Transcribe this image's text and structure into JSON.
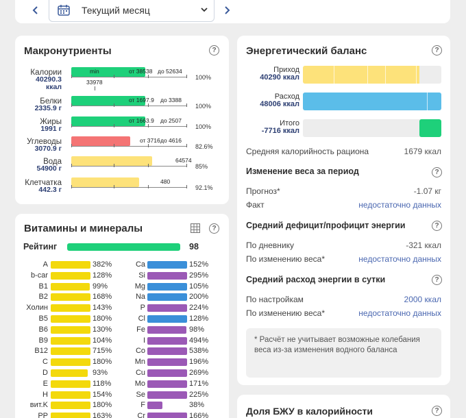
{
  "header": {
    "period_label": "Текущий месяц",
    "prev_icon": "chevron-left-icon",
    "next_icon": "chevron-right-icon"
  },
  "macros": {
    "title": "Макронутриенты",
    "items": [
      {
        "name": "Калории",
        "value1": "40290.3",
        "value2": "ккал",
        "fill_fraction": 0.64,
        "color": "#1ed07a",
        "labels": [
          "min",
          "от 38538",
          "до 52634"
        ],
        "sub_label": "33978",
        "pct": "100%"
      },
      {
        "name": "Белки",
        "value1": "2335.9 г",
        "fill_fraction": 0.64,
        "color": "#1ed07a",
        "labels": [
          "от 1697.9",
          "до 3388"
        ],
        "pct": "100%"
      },
      {
        "name": "Жиры",
        "value1": "1991 г",
        "fill_fraction": 0.64,
        "color": "#1ed07a",
        "labels": [
          "от 1663.9",
          "до 2507"
        ],
        "pct": "100%"
      },
      {
        "name": "Углеводы",
        "value1": "3070.9 г",
        "fill_fraction": 0.51,
        "color": "#f47474",
        "labels": [
          "от 3716",
          "до 4616"
        ],
        "pct": "82.6%"
      },
      {
        "name": "Вода",
        "value1": "54900 г",
        "fill_fraction": 0.7,
        "color": "#fde27a",
        "labels": [
          "64574"
        ],
        "pct": "85%"
      },
      {
        "name": "Клетчатка",
        "value1": "442.3 г",
        "fill_fraction": 0.59,
        "color": "#fde27a",
        "labels": [
          "480"
        ],
        "pct": "92.1%"
      }
    ]
  },
  "vitamins": {
    "title": "Витамины и минералы",
    "rating_label": "Рейтинг",
    "rating_value": "98",
    "rating_fraction": 0.98,
    "left": [
      {
        "name": "A",
        "pct": "382%",
        "fill": 1.0
      },
      {
        "name": "b-car",
        "pct": "128%",
        "fill": 1.0
      },
      {
        "name": "B1",
        "pct": "99%",
        "fill": 0.99
      },
      {
        "name": "B2",
        "pct": "168%",
        "fill": 1.0
      },
      {
        "name": "Холин",
        "pct": "143%",
        "fill": 1.0
      },
      {
        "name": "B5",
        "pct": "180%",
        "fill": 1.0
      },
      {
        "name": "B6",
        "pct": "130%",
        "fill": 1.0
      },
      {
        "name": "B9",
        "pct": "104%",
        "fill": 1.0
      },
      {
        "name": "B12",
        "pct": "715%",
        "fill": 1.0
      },
      {
        "name": "C",
        "pct": "180%",
        "fill": 1.0
      },
      {
        "name": "D",
        "pct": "93%",
        "fill": 0.93
      },
      {
        "name": "E",
        "pct": "118%",
        "fill": 1.0
      },
      {
        "name": "H",
        "pct": "154%",
        "fill": 1.0
      },
      {
        "name": "вит.K",
        "pct": "180%",
        "fill": 1.0
      },
      {
        "name": "PP",
        "pct": "163%",
        "fill": 1.0
      }
    ],
    "right": [
      {
        "name": "Ca",
        "pct": "152%",
        "fill": 1.0,
        "color": "#3a8fd9"
      },
      {
        "name": "Si",
        "pct": "295%",
        "fill": 1.0,
        "color": "#9b59b6"
      },
      {
        "name": "Mg",
        "pct": "105%",
        "fill": 1.0,
        "color": "#3a8fd9"
      },
      {
        "name": "Na",
        "pct": "200%",
        "fill": 1.0,
        "color": "#3a8fd9"
      },
      {
        "name": "P",
        "pct": "224%",
        "fill": 1.0,
        "color": "#9b59b6"
      },
      {
        "name": "Cl",
        "pct": "128%",
        "fill": 1.0,
        "color": "#3a8fd9"
      },
      {
        "name": "Fe",
        "pct": "98%",
        "fill": 0.98,
        "color": "#9b59b6"
      },
      {
        "name": "I",
        "pct": "494%",
        "fill": 1.0,
        "color": "#9b59b6"
      },
      {
        "name": "Co",
        "pct": "538%",
        "fill": 1.0,
        "color": "#9b59b6"
      },
      {
        "name": "Mn",
        "pct": "196%",
        "fill": 1.0,
        "color": "#9b59b6"
      },
      {
        "name": "Cu",
        "pct": "269%",
        "fill": 1.0,
        "color": "#9b59b6"
      },
      {
        "name": "Mo",
        "pct": "171%",
        "fill": 1.0,
        "color": "#9b59b6"
      },
      {
        "name": "Se",
        "pct": "225%",
        "fill": 1.0,
        "color": "#9b59b6"
      },
      {
        "name": "F",
        "pct": "38%",
        "fill": 0.38,
        "color": "#9b59b6"
      },
      {
        "name": "Cr",
        "pct": "166%",
        "fill": 1.0,
        "color": "#9b59b6"
      }
    ]
  },
  "energy": {
    "title": "Энергетический баланс",
    "intake_label": "Приход",
    "intake_value": "40290 ккал",
    "intake_fraction": 0.84,
    "expense_label": "Расход",
    "expense_value": "48006 ккал",
    "expense_fraction": 1.0,
    "total_label": "Итого",
    "total_value": "-7716 ккал",
    "total_fraction": 0.16,
    "avg_label": "Средняя калорийность рациона",
    "avg_value": "1679 ккал",
    "weight_title": "Изменение веса за период",
    "forecast_label": "Прогноз*",
    "forecast_value": "-1.07 кг",
    "fact_label": "Факт",
    "fact_value": "недостаточно данных",
    "deficit_title": "Средний дефицит/профицит энергии",
    "diary_label": "По дневнику",
    "diary_value": "-321 ккал",
    "weightchange_label": "По изменению веса*",
    "weightchange_value": "недостаточно данных",
    "daily_title": "Средний расход энергии в сутки",
    "settings_label": "По настройкам",
    "settings_value": "2000 ккал",
    "weightchange2_label": "По изменению веса*",
    "weightchange2_value": "недостаточно данных",
    "note": "* Расчёт не учитывает возможные колебания веса из-за изменения водного баланса"
  },
  "bju": {
    "title": "Доля БЖУ в калорийности"
  },
  "colors": {
    "green": "#1ed07a",
    "red": "#f47474",
    "yellow": "#fde27a",
    "vit_yellow": "#f3d90c",
    "blue": "#5bbde9",
    "link": "#4a67b0"
  }
}
